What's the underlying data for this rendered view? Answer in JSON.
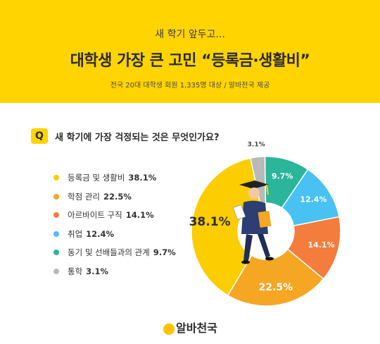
{
  "header": {
    "subtitle": "새 학기 앞두고...",
    "title": "대학생 가장 큰 고민 “등록금·생활비”",
    "source": "전국 20대 대학생 회원 1,335명 대상 / 알바천국 제공"
  },
  "question": {
    "badge": "Q",
    "text": "새 학기에 가장 걱정되는 것은 무엇인가요?"
  },
  "chart_data": {
    "type": "pie",
    "categories": [
      "등록금 및 생활비",
      "학점 관리",
      "아르바이트 구직",
      "취업",
      "동기 및 선배들과의 관계",
      "통학"
    ],
    "values": [
      38.1,
      22.5,
      14.1,
      12.4,
      9.7,
      3.1
    ],
    "value_labels": [
      "38.1%",
      "22.5%",
      "14.1%",
      "12.4%",
      "9.7%",
      "3.1%"
    ],
    "colors": [
      "#fccd00",
      "#f5a623",
      "#f47c3c",
      "#47c2f2",
      "#2bb59a",
      "#b9b9b9"
    ],
    "donut": true
  },
  "footer": {
    "logo_mark": "⬤",
    "logo_text": "알바천국"
  }
}
